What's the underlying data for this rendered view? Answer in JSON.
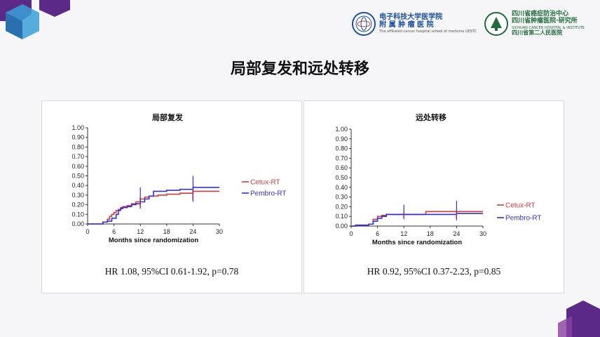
{
  "slide": {
    "title": "局部复发和远处转移"
  },
  "logos": {
    "uestc_name": "电子科技大学医学院",
    "uestc_hospital": "附 属 肿 瘤 医 院",
    "uestc_english": "The affiliated cancer hospital school of medicine UESTC",
    "sch_name": "四川省癌症防治中心",
    "sch_hospital": "四川省肿瘤医院·研究所",
    "sch_english": "SICHUAN CANCER HOSPITAL & INSTITUTE",
    "sch_second": "四川省第二人民医院"
  },
  "colors": {
    "cetux": "#d43a3a",
    "pembro": "#3030d8",
    "deco_purple": "#5b2a86",
    "deco_blue": "#3aa0d8"
  },
  "chart_data": [
    {
      "type": "line",
      "step": true,
      "title": "局部复发",
      "xlabel": "Months since randomization",
      "ylabel": "",
      "xlim": [
        0,
        30
      ],
      "ylim": [
        0,
        1
      ],
      "xticks": [
        "0",
        "6",
        "12",
        "18",
        "24",
        "30"
      ],
      "yticks": [
        "0.00",
        "0.10",
        "0.20",
        "0.30",
        "0.40",
        "0.50",
        "0.60",
        "0.70",
        "0.80",
        "0.90",
        "1.00"
      ],
      "legend_position": "right",
      "series": [
        {
          "name": "Cetux-RT",
          "color": "#d43a3a",
          "x": [
            0,
            3.5,
            4.5,
            5,
            5.5,
            6,
            6.5,
            7,
            7.5,
            8,
            9,
            10,
            11,
            12,
            13,
            14,
            16,
            18,
            21,
            24,
            30
          ],
          "y": [
            0,
            0.02,
            0.05,
            0.08,
            0.1,
            0.12,
            0.14,
            0.15,
            0.17,
            0.18,
            0.19,
            0.21,
            0.23,
            0.26,
            0.28,
            0.29,
            0.3,
            0.31,
            0.32,
            0.34,
            0.34
          ]
        },
        {
          "name": "Pembro-RT",
          "color": "#3030d8",
          "x": [
            0,
            3.5,
            4.5,
            5.5,
            6.5,
            7,
            7.5,
            8,
            9,
            10,
            11,
            12,
            13,
            14,
            15,
            18,
            21,
            24,
            30
          ],
          "y": [
            0,
            0.02,
            0.03,
            0.06,
            0.1,
            0.14,
            0.16,
            0.17,
            0.18,
            0.2,
            0.21,
            0.23,
            0.26,
            0.29,
            0.34,
            0.35,
            0.36,
            0.38,
            0.38
          ]
        }
      ],
      "ci_marks": [
        {
          "x": 12,
          "y_low": 0.16,
          "y_high": 0.38
        },
        {
          "x": 24,
          "y_low": 0.23,
          "y_high": 0.5
        }
      ],
      "annotation": "HR 1.08, 95%CI 0.61-1.92, p=0.78"
    },
    {
      "type": "line",
      "step": true,
      "title": "远处转移",
      "xlabel": "Months since randomization",
      "ylabel": "",
      "xlim": [
        0,
        30
      ],
      "ylim": [
        0,
        1
      ],
      "xticks": [
        "0",
        "6",
        "12",
        "18",
        "24",
        "30"
      ],
      "yticks": [
        "0.00",
        "0.10",
        "0.20",
        "0.30",
        "0.40",
        "0.50",
        "0.60",
        "0.70",
        "0.80",
        "0.90",
        "1.00"
      ],
      "legend_position": "right",
      "series": [
        {
          "name": "Cetux-RT",
          "color": "#d43a3a",
          "x": [
            0,
            1,
            4,
            5,
            6,
            7,
            8,
            12,
            17,
            24,
            30
          ],
          "y": [
            0,
            0.01,
            0.02,
            0.07,
            0.1,
            0.11,
            0.12,
            0.12,
            0.15,
            0.15,
            0.15
          ]
        },
        {
          "name": "Pembro-RT",
          "color": "#3030d8",
          "x": [
            0,
            1,
            4,
            5,
            6,
            7,
            8,
            12,
            24,
            30
          ],
          "y": [
            0,
            0.01,
            0.02,
            0.05,
            0.08,
            0.1,
            0.12,
            0.12,
            0.13,
            0.13
          ]
        }
      ],
      "ci_marks": [
        {
          "x": 12,
          "y_low": 0.07,
          "y_high": 0.22
        },
        {
          "x": 24,
          "y_low": 0.06,
          "y_high": 0.26
        }
      ],
      "annotation": "HR 0.92, 95%CI 0.37-2.23, p=0.85"
    }
  ]
}
